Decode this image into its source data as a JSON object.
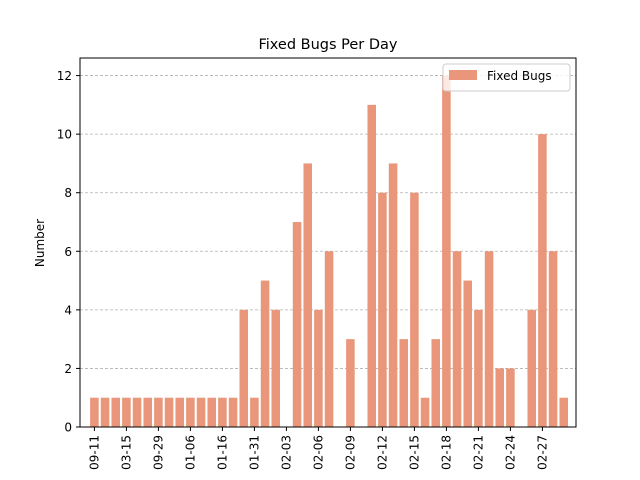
{
  "chart_data": {
    "type": "bar",
    "title": "Fixed Bugs Per Day",
    "xlabel": "",
    "ylabel": "Number",
    "ylim": [
      0,
      12.6
    ],
    "yticks": [
      0,
      2,
      4,
      6,
      8,
      10,
      12
    ],
    "grid": "y-dashed",
    "legend_position": "top-right",
    "bar_color": "#e9967a",
    "series": [
      {
        "name": "Fixed Bugs",
        "values": [
          1,
          1,
          1,
          1,
          1,
          1,
          1,
          1,
          1,
          1,
          1,
          1,
          1,
          1,
          4,
          1,
          5,
          4,
          0,
          7,
          9,
          4,
          6,
          0,
          3,
          0,
          11,
          8,
          9,
          3,
          8,
          1,
          3,
          12,
          6,
          5,
          4,
          6,
          2,
          2,
          0,
          4,
          10,
          6,
          1
        ]
      }
    ],
    "tick_labels": [
      {
        "index": 0,
        "label": "09-11"
      },
      {
        "index": 3,
        "label": "03-15"
      },
      {
        "index": 6,
        "label": "09-29"
      },
      {
        "index": 9,
        "label": "01-06"
      },
      {
        "index": 12,
        "label": "01-16"
      },
      {
        "index": 15,
        "label": "01-31"
      },
      {
        "index": 18,
        "label": "02-03"
      },
      {
        "index": 21,
        "label": "02-06"
      },
      {
        "index": 24,
        "label": "02-09"
      },
      {
        "index": 27,
        "label": "02-12"
      },
      {
        "index": 30,
        "label": "02-15"
      },
      {
        "index": 33,
        "label": "02-18"
      },
      {
        "index": 36,
        "label": "02-21"
      },
      {
        "index": 39,
        "label": "02-24"
      },
      {
        "index": 42,
        "label": "02-27"
      }
    ]
  }
}
